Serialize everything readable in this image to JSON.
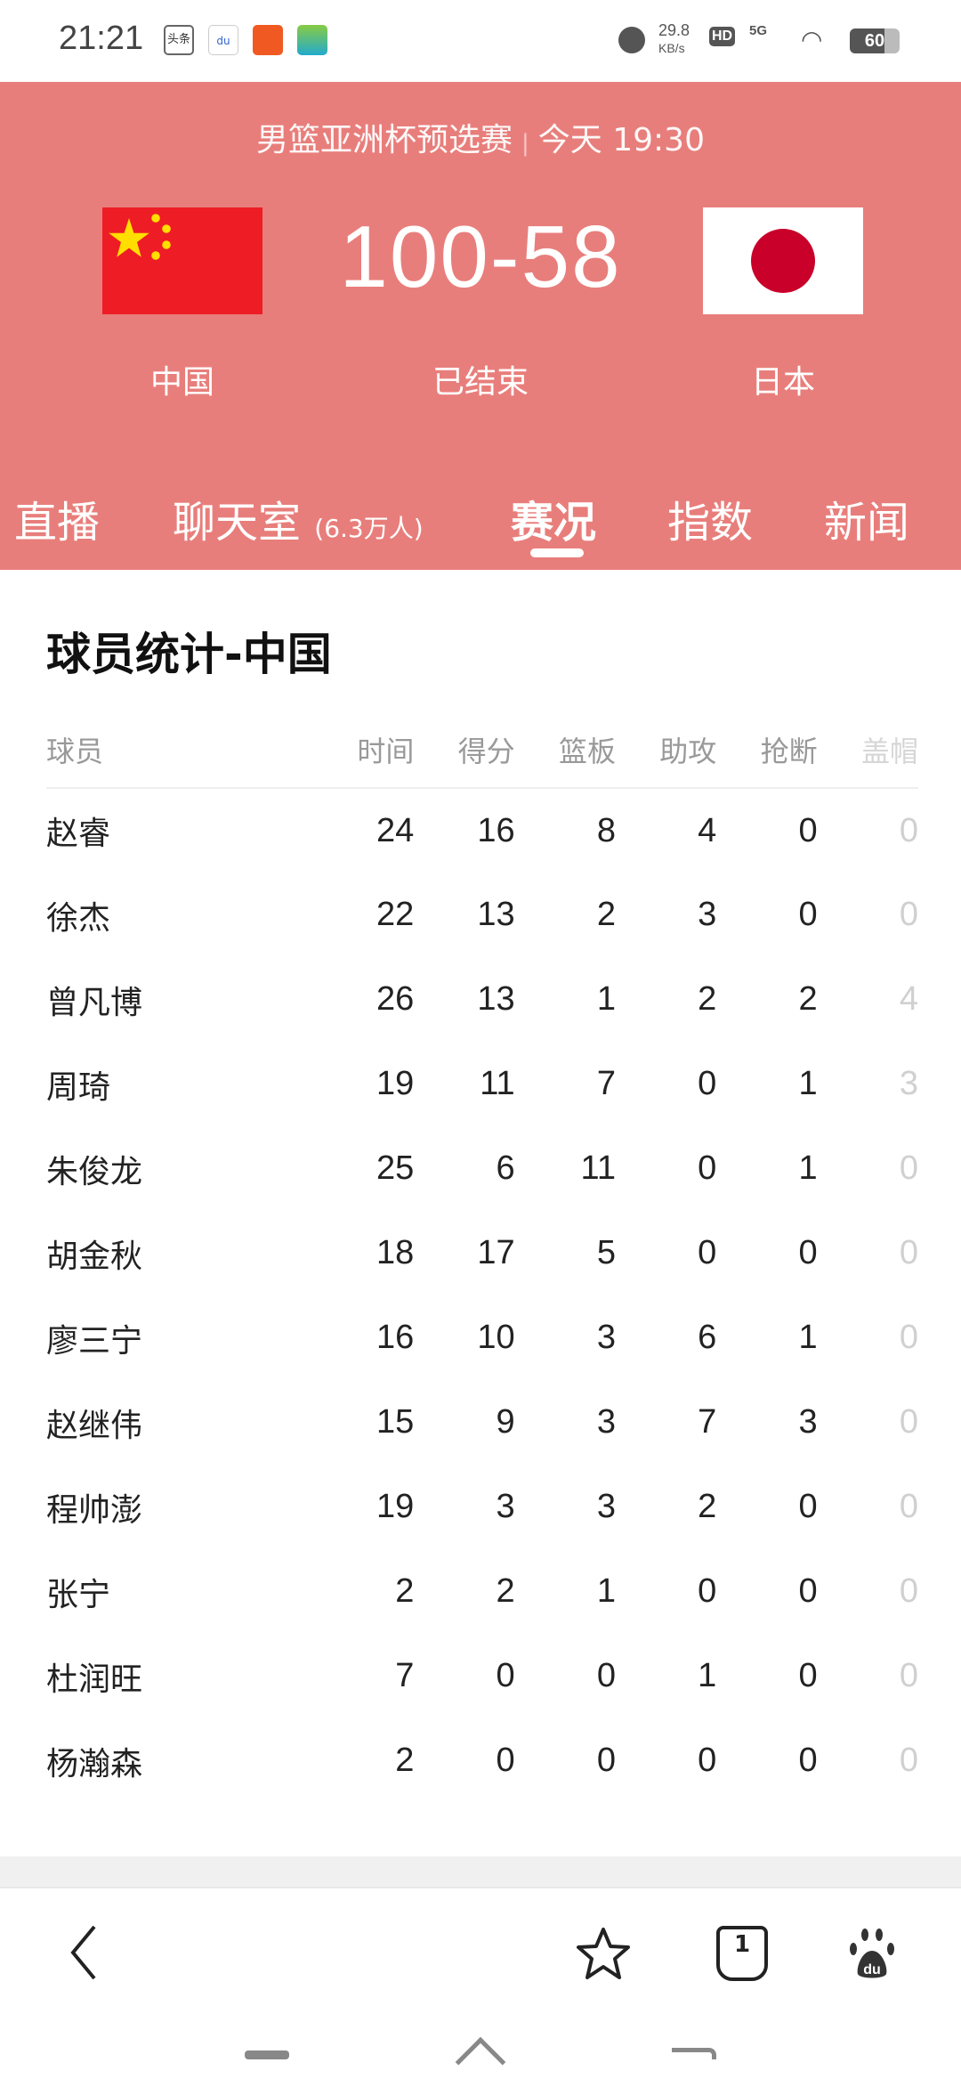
{
  "status_bar": {
    "time": "21:21",
    "app_icons": [
      "头条",
      "du",
      "arrow-app",
      "ai-app"
    ],
    "speed": "29.8",
    "speed_unit": "KB/s",
    "hd": "HD",
    "network": "5G",
    "battery": "60"
  },
  "match": {
    "league": "男篮亚洲杯预选赛",
    "time": "今天 19:30",
    "score": "100-58",
    "status": "已结束",
    "home": "中国",
    "away": "日本",
    "header_color": "#E87E7B"
  },
  "tabs": [
    {
      "label": "直播"
    },
    {
      "label": "聊天室",
      "count": "(6.3万人)"
    },
    {
      "label": "赛况",
      "active": true
    },
    {
      "label": "指数"
    },
    {
      "label": "新闻"
    }
  ],
  "stats": {
    "title": "球员统计-中国",
    "columns": [
      "球员",
      "时间",
      "得分",
      "篮板",
      "助攻",
      "抢断",
      "盖帽"
    ],
    "rows": [
      [
        "赵睿",
        "24",
        "16",
        "8",
        "4",
        "0",
        "0"
      ],
      [
        "徐杰",
        "22",
        "13",
        "2",
        "3",
        "0",
        "0"
      ],
      [
        "曾凡博",
        "26",
        "13",
        "1",
        "2",
        "2",
        "4"
      ],
      [
        "周琦",
        "19",
        "11",
        "7",
        "0",
        "1",
        "3"
      ],
      [
        "朱俊龙",
        "25",
        "6",
        "11",
        "0",
        "1",
        "0"
      ],
      [
        "胡金秋",
        "18",
        "17",
        "5",
        "0",
        "0",
        "0"
      ],
      [
        "廖三宁",
        "16",
        "10",
        "3",
        "6",
        "1",
        "0"
      ],
      [
        "赵继伟",
        "15",
        "9",
        "3",
        "7",
        "3",
        "0"
      ],
      [
        "程帅澎",
        "19",
        "3",
        "3",
        "2",
        "0",
        "0"
      ],
      [
        "张宁",
        "2",
        "2",
        "1",
        "0",
        "0",
        "0"
      ],
      [
        "杜润旺",
        "7",
        "0",
        "0",
        "1",
        "0",
        "0"
      ],
      [
        "杨瀚森",
        "2",
        "0",
        "0",
        "0",
        "0",
        "0"
      ]
    ]
  },
  "bottom_nav": {
    "icons": [
      "back-icon",
      "star-icon",
      "tabs-icon",
      "baidu-paw-icon"
    ],
    "tab_count": "1"
  }
}
